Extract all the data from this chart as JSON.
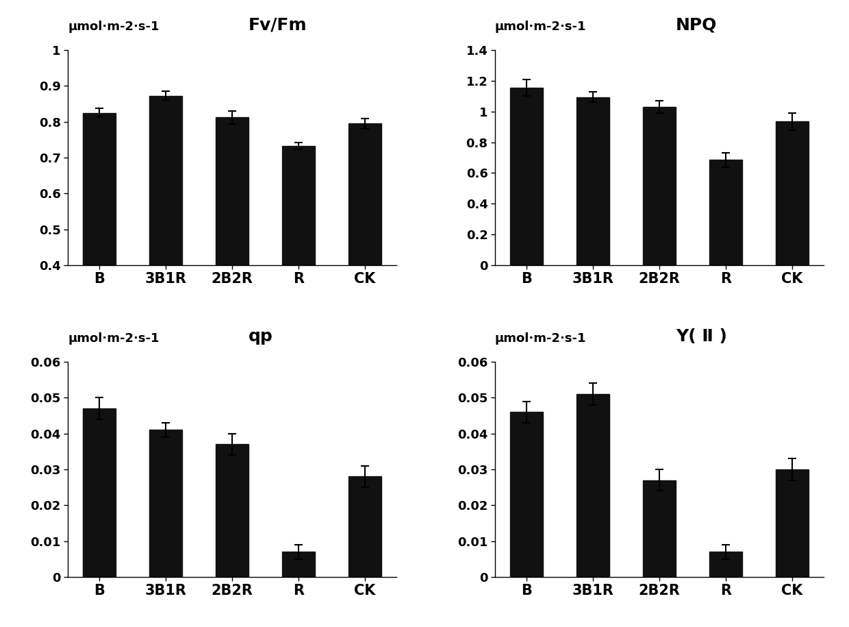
{
  "categories": [
    "B",
    "3B1R",
    "2B2R",
    "R",
    "CK"
  ],
  "fvfm": {
    "title": "Fv/Fm",
    "ylabel": "μmol·m-2·s-1",
    "values": [
      0.825,
      0.873,
      0.812,
      0.733,
      0.795
    ],
    "errors": [
      0.012,
      0.013,
      0.018,
      0.01,
      0.015
    ],
    "ylim": [
      0.4,
      1.0
    ],
    "yticks": [
      0.4,
      0.5,
      0.6,
      0.7,
      0.8,
      0.9,
      1.0
    ]
  },
  "npq": {
    "title": "NPQ",
    "ylabel": "μmol·m-2·s-1",
    "values": [
      1.155,
      1.095,
      1.03,
      0.685,
      0.935
    ],
    "errors": [
      0.055,
      0.035,
      0.04,
      0.045,
      0.055
    ],
    "ylim": [
      0,
      1.4
    ],
    "yticks": [
      0,
      0.2,
      0.4,
      0.6,
      0.8,
      1.0,
      1.2,
      1.4
    ]
  },
  "qp": {
    "title": "qp",
    "ylabel": "μmol·m-2·s-1",
    "values": [
      0.047,
      0.041,
      0.037,
      0.007,
      0.028
    ],
    "errors": [
      0.003,
      0.002,
      0.003,
      0.002,
      0.003
    ],
    "ylim": [
      0,
      0.06
    ],
    "yticks": [
      0,
      0.01,
      0.02,
      0.03,
      0.04,
      0.05,
      0.06
    ]
  },
  "yii": {
    "title": "Y( Ⅱ )",
    "ylabel": "μmol·m-2·s-1",
    "values": [
      0.046,
      0.051,
      0.027,
      0.007,
      0.03
    ],
    "errors": [
      0.003,
      0.003,
      0.003,
      0.002,
      0.003
    ],
    "ylim": [
      0,
      0.06
    ],
    "yticks": [
      0,
      0.01,
      0.02,
      0.03,
      0.04,
      0.05,
      0.06
    ]
  },
  "bar_color": "#111111",
  "background_color": "#ffffff",
  "bar_width": 0.5,
  "title_fontsize": 18,
  "ylabel_fontsize": 13,
  "tick_fontsize": 13,
  "xtick_fontsize": 15
}
